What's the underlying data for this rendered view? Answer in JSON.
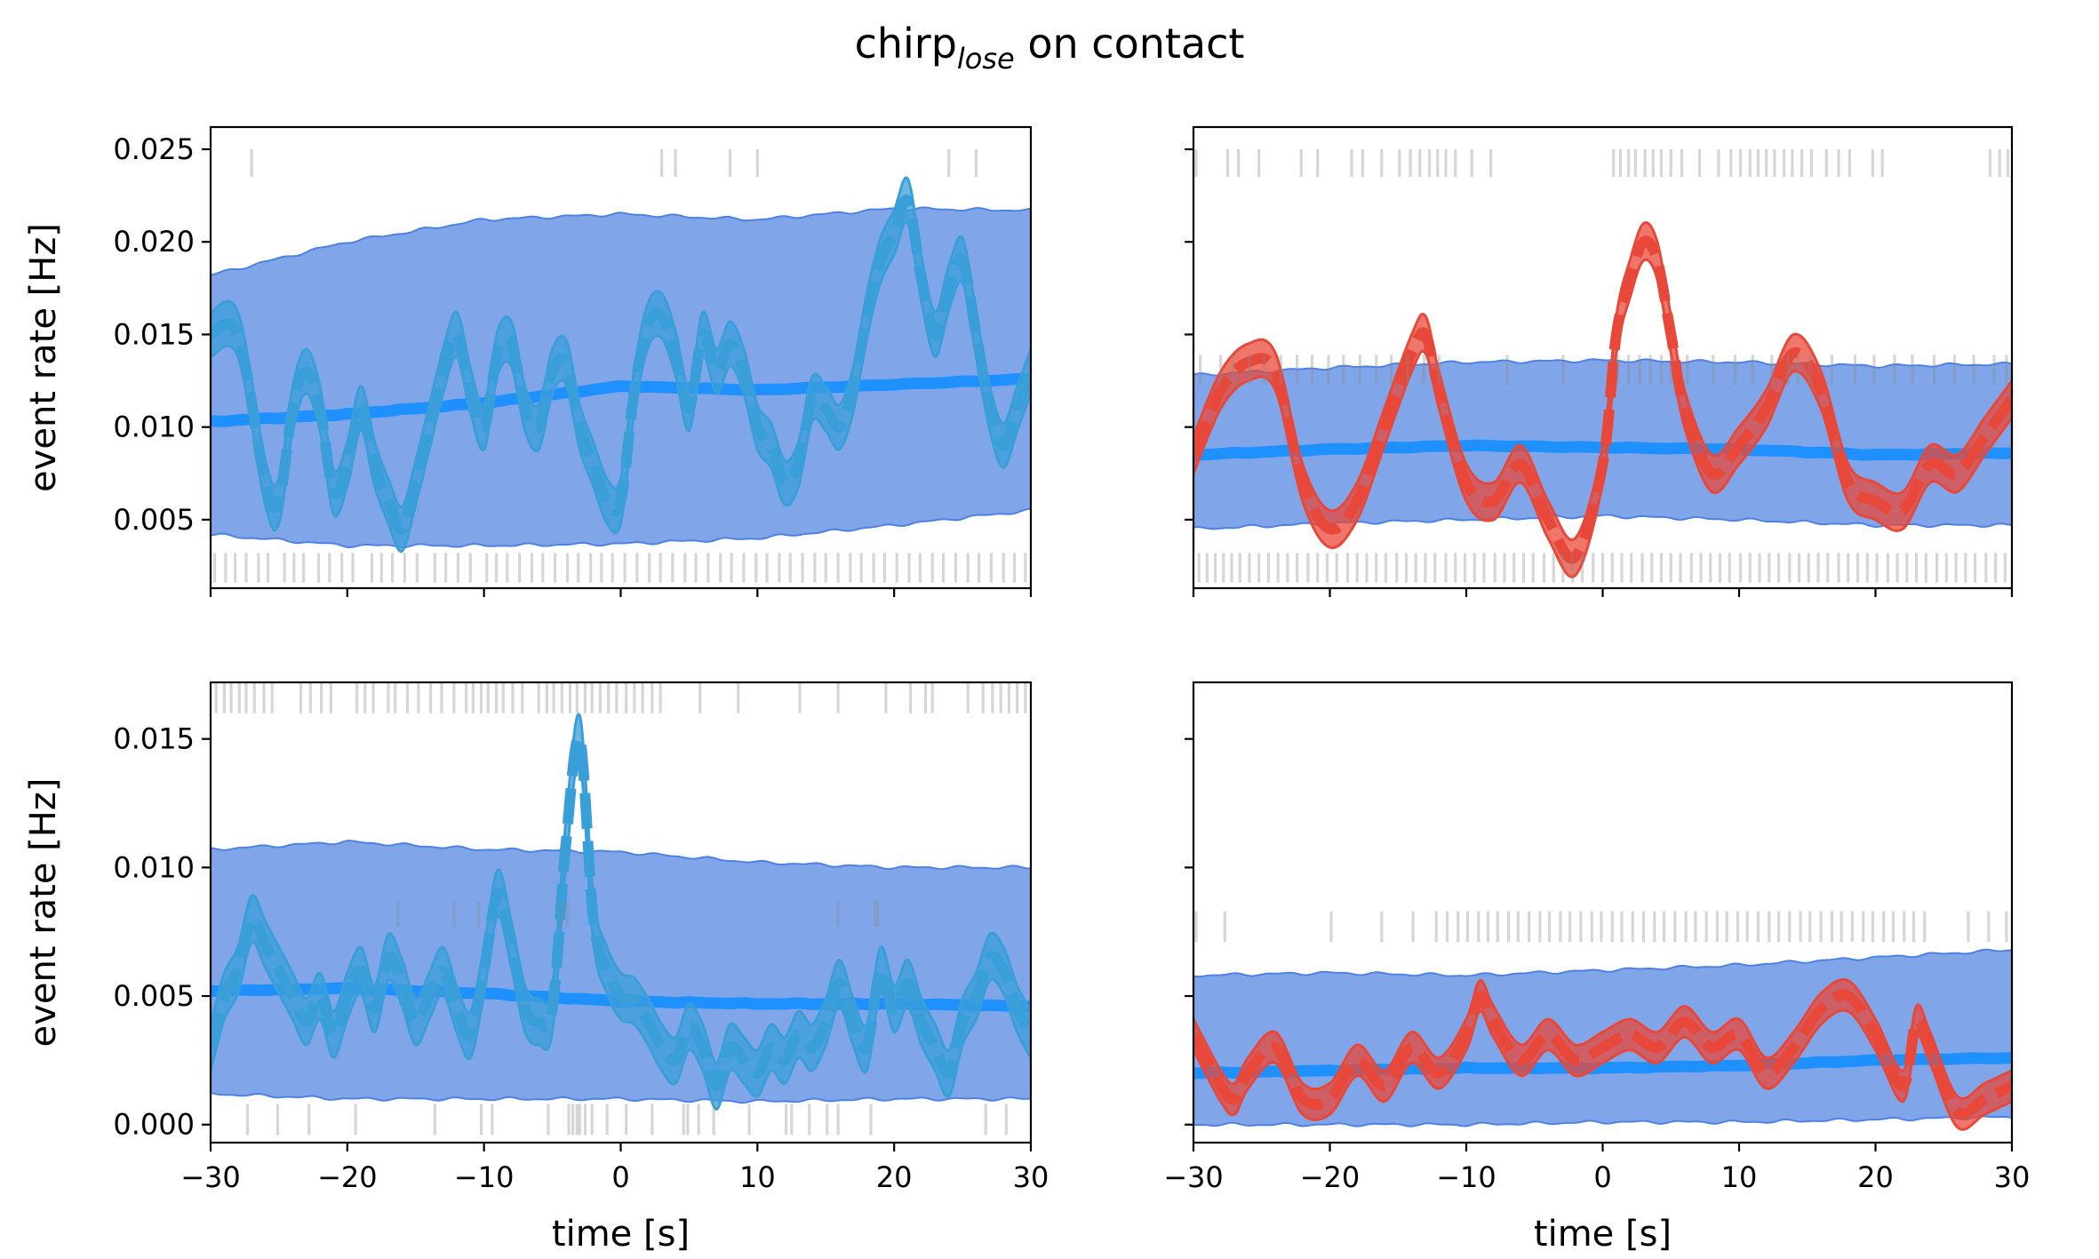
{
  "figure": {
    "title_main": "chirp",
    "title_sub": "lose",
    "title_rest": " on contact"
  },
  "colors": {
    "band": "#4f82e0",
    "mean": "#1e90ff",
    "curve_left": "#3a9fd8",
    "curve_right": "#e8483a",
    "rug": "#8a8a8a"
  },
  "chart_data": [
    {
      "panel": "top-left",
      "type": "area",
      "ylabel": "event rate [Hz]",
      "xlabel": "",
      "xlim": [
        -30,
        30
      ],
      "ylim": [
        0.0013,
        0.0262
      ],
      "yticks": [
        0.005,
        0.01,
        0.015,
        0.02,
        0.025
      ],
      "ytick_labels": [
        "0.005",
        "0.010",
        "0.015",
        "0.020",
        "0.025"
      ],
      "xticks": [
        -30,
        -20,
        -10,
        0,
        10,
        20,
        30
      ],
      "xtick_labels": [],
      "show_yticklabels": true,
      "curve_color": "#3a9fd8",
      "band_lower": {
        "x": [
          -30,
          -20,
          -10,
          0,
          10,
          20,
          30
        ],
        "y": [
          0.0042,
          0.0036,
          0.0036,
          0.0037,
          0.004,
          0.0047,
          0.0055
        ]
      },
      "band_upper": {
        "x": [
          -30,
          -20,
          -10,
          0,
          10,
          20,
          30
        ],
        "y": [
          0.0182,
          0.02,
          0.0212,
          0.0215,
          0.0212,
          0.0218,
          0.0217
        ]
      },
      "mean": {
        "x": [
          -30,
          -20,
          -10,
          0,
          10,
          20,
          30
        ],
        "y": [
          0.0103,
          0.0107,
          0.0113,
          0.0122,
          0.012,
          0.0123,
          0.0126
        ]
      },
      "curve": {
        "x": [
          -30,
          -28,
          -26,
          -25,
          -24,
          -23,
          -22,
          -21,
          -20,
          -19,
          -18,
          -17,
          -16,
          -15,
          -14,
          -13,
          -12,
          -11,
          -10,
          -9,
          -8,
          -7,
          -6,
          -5,
          -4,
          -3,
          -2,
          -1,
          0,
          1,
          2,
          3,
          4,
          5,
          6,
          7,
          8,
          9,
          10,
          11,
          12,
          13,
          14,
          15,
          16,
          17,
          18,
          19,
          20,
          21,
          22,
          23,
          24,
          25,
          26,
          27,
          28,
          29,
          30
        ],
        "y": [
          0.015,
          0.015,
          0.007,
          0.006,
          0.011,
          0.013,
          0.011,
          0.0065,
          0.008,
          0.011,
          0.008,
          0.006,
          0.0045,
          0.007,
          0.01,
          0.013,
          0.015,
          0.012,
          0.01,
          0.014,
          0.0145,
          0.011,
          0.01,
          0.013,
          0.0135,
          0.01,
          0.008,
          0.006,
          0.006,
          0.012,
          0.0155,
          0.016,
          0.014,
          0.011,
          0.015,
          0.013,
          0.0145,
          0.013,
          0.01,
          0.009,
          0.007,
          0.008,
          0.0115,
          0.011,
          0.01,
          0.012,
          0.016,
          0.019,
          0.0205,
          0.0222,
          0.018,
          0.015,
          0.0175,
          0.019,
          0.015,
          0.011,
          0.009,
          0.011,
          0.013
        ]
      },
      "curve_halfwidth": 0.0012,
      "rug_top": [
        -27,
        3,
        4,
        8,
        10,
        24,
        26
      ],
      "rug_bottom": [
        -29.7,
        -28.9,
        -28.2,
        -27.4,
        -26.5,
        -25.8,
        -24.6,
        -23.9,
        -23.2,
        -22.1,
        -21.3,
        -20.4,
        -19.6,
        -18.2,
        -17.5,
        -16.7,
        -15.8,
        -14.9,
        -13.6,
        -12.8,
        -11.9,
        -11.0,
        -9.8,
        -9.1,
        -8.3,
        -7.4,
        -6.5,
        -5.7,
        -4.8,
        -3.9,
        -3.1,
        -2.2,
        -1.4,
        -0.6,
        0.3,
        1.2,
        2.1,
        2.9,
        3.8,
        4.7,
        5.5,
        6.4,
        7.3,
        8.1,
        9.0,
        9.9,
        10.7,
        11.6,
        12.4,
        13.3,
        14.2,
        15.0,
        15.9,
        16.8,
        17.6,
        18.5,
        19.3,
        20.2,
        21.1,
        21.9,
        22.8,
        23.6,
        24.5,
        25.4,
        26.2,
        27.1,
        28.0,
        28.8,
        29.6
      ],
      "rug_top_band": [
        0.0235,
        0.025
      ],
      "rug_bottom_band": [
        0.0016,
        0.0032
      ]
    },
    {
      "panel": "top-right",
      "type": "area",
      "ylabel": "",
      "xlabel": "",
      "xlim": [
        -30,
        30
      ],
      "ylim": [
        0.0013,
        0.0262
      ],
      "yticks": [
        0.005,
        0.01,
        0.015,
        0.02,
        0.025
      ],
      "ytick_labels": [],
      "xticks": [
        -30,
        -20,
        -10,
        0,
        10,
        20,
        30
      ],
      "xtick_labels": [],
      "show_yticklabels": false,
      "curve_color": "#e8483a",
      "band_lower": {
        "x": [
          -30,
          -20,
          -10,
          0,
          10,
          20,
          30
        ],
        "y": [
          0.0045,
          0.0048,
          0.005,
          0.0052,
          0.005,
          0.0047,
          0.0047
        ]
      },
      "band_upper": {
        "x": [
          -30,
          -20,
          -10,
          0,
          10,
          20,
          30
        ],
        "y": [
          0.0128,
          0.0132,
          0.0135,
          0.0136,
          0.0135,
          0.0133,
          0.0134
        ]
      },
      "mean": {
        "x": [
          -30,
          -20,
          -10,
          0,
          10,
          20,
          30
        ],
        "y": [
          0.0085,
          0.0088,
          0.009,
          0.0089,
          0.0088,
          0.0085,
          0.0086
        ]
      },
      "curve": {
        "x": [
          -30,
          -28,
          -26,
          -24,
          -22,
          -20,
          -18,
          -16,
          -14,
          -13,
          -12,
          -10,
          -8,
          -6,
          -4,
          -2,
          0,
          1,
          2,
          3,
          4,
          5,
          6,
          8,
          10,
          12,
          14,
          16,
          18,
          20,
          22,
          24,
          26,
          28,
          30
        ],
        "y": [
          0.0085,
          0.012,
          0.0135,
          0.013,
          0.007,
          0.0045,
          0.006,
          0.01,
          0.014,
          0.015,
          0.012,
          0.007,
          0.006,
          0.008,
          0.005,
          0.003,
          0.008,
          0.015,
          0.018,
          0.02,
          0.019,
          0.015,
          0.011,
          0.0075,
          0.009,
          0.011,
          0.014,
          0.012,
          0.007,
          0.006,
          0.0055,
          0.008,
          0.0075,
          0.0095,
          0.0115
        ]
      },
      "curve_halfwidth": 0.001,
      "rug_top": [
        -29.8,
        -27.5,
        -26.7,
        -25.2,
        -22.1,
        -20.9,
        -18.4,
        -17.6,
        -16.2,
        -14.9,
        -14.1,
        -13.4,
        -12.7,
        -12.1,
        -11.5,
        -10.8,
        -9.6,
        -8.2,
        0.8,
        1.3,
        1.9,
        2.4,
        3.1,
        3.7,
        4.3,
        5.0,
        5.8,
        7.1,
        8.5,
        9.4,
        10.1,
        10.8,
        11.4,
        12.0,
        12.6,
        13.3,
        13.9,
        14.6,
        15.3,
        16.4,
        17.3,
        18.1,
        19.8,
        20.5,
        28.4,
        29.1,
        29.7
      ],
      "rug_mid": [
        -29.5,
        -28.0,
        -27.1,
        -25.9,
        -24.8,
        -23.6,
        -22.4,
        -21.3,
        -20.1,
        -19.0,
        -17.8,
        -16.6,
        -15.5,
        -14.3,
        -13.1,
        -12.0,
        -7.0,
        -2.9,
        1.1,
        1.9,
        2.7,
        3.5,
        4.3,
        5.0,
        6.2,
        8.1,
        9.7,
        11.0,
        12.4,
        13.6,
        14.3,
        15.2,
        16.8,
        18.5,
        19.9,
        21.4,
        22.7,
        24.3,
        25.8,
        27.2,
        28.7,
        29.6
      ],
      "rug_bottom": [
        -29.6,
        -29.0,
        -28.4,
        -27.8,
        -27.2,
        -26.6,
        -25.9,
        -25.2,
        -24.5,
        -23.8,
        -23.1,
        -22.4,
        -21.6,
        -20.9,
        -20.2,
        -19.5,
        -18.7,
        -18.0,
        -17.3,
        -16.6,
        -15.9,
        -15.1,
        -14.4,
        -13.7,
        -13.0,
        -12.3,
        -11.5,
        -10.8,
        -10.1,
        -9.4,
        -8.7,
        -7.9,
        -7.2,
        -6.5,
        -5.8,
        -5.1,
        -4.3,
        -3.6,
        -2.9,
        -2.2,
        -1.5,
        -0.7,
        0.0,
        0.7,
        1.4,
        2.1,
        2.9,
        3.6,
        4.3,
        5.0,
        5.7,
        6.5,
        7.2,
        7.9,
        8.6,
        9.3,
        10.1,
        10.8,
        11.5,
        12.2,
        12.9,
        13.7,
        14.4,
        15.1,
        15.8,
        16.5,
        17.3,
        18.0,
        18.7,
        19.4,
        20.1,
        20.9,
        21.6,
        22.3,
        23.0,
        23.7,
        24.5,
        25.2,
        25.9,
        26.6,
        27.3,
        28.1,
        28.8,
        29.5
      ],
      "rug_top_band": [
        0.0235,
        0.025
      ],
      "rug_mid_band": [
        0.0123,
        0.0139
      ],
      "rug_bottom_band": [
        0.0016,
        0.0032
      ]
    },
    {
      "panel": "bottom-left",
      "type": "area",
      "ylabel": "event rate [Hz]",
      "xlabel": "time [s]",
      "xlim": [
        -30,
        30
      ],
      "ylim": [
        -0.0007,
        0.0172
      ],
      "yticks": [
        0.0,
        0.005,
        0.01,
        0.015
      ],
      "ytick_labels": [
        "0.000",
        "0.005",
        "0.010",
        "0.015"
      ],
      "xticks": [
        -30,
        -20,
        -10,
        0,
        10,
        20,
        30
      ],
      "xtick_labels": [
        "−30",
        "−20",
        "−10",
        "0",
        "10",
        "20",
        "30"
      ],
      "show_yticklabels": true,
      "curve_color": "#3a9fd8",
      "band_lower": {
        "x": [
          -30,
          -20,
          -10,
          0,
          10,
          20,
          30
        ],
        "y": [
          0.0012,
          0.001,
          0.001,
          0.001,
          0.0009,
          0.001,
          0.001
        ]
      },
      "band_upper": {
        "x": [
          -30,
          -20,
          -10,
          0,
          10,
          20,
          30
        ],
        "y": [
          0.0107,
          0.011,
          0.0107,
          0.0106,
          0.0102,
          0.01,
          0.01
        ]
      },
      "mean": {
        "x": [
          -30,
          -20,
          -10,
          0,
          10,
          20,
          30
        ],
        "y": [
          0.0052,
          0.0053,
          0.0051,
          0.0048,
          0.0047,
          0.0047,
          0.0046
        ]
      },
      "curve": {
        "x": [
          -30,
          -29,
          -28,
          -27,
          -26,
          -25,
          -24,
          -23,
          -22,
          -21,
          -20,
          -19,
          -18,
          -17,
          -16,
          -15,
          -14,
          -13,
          -12,
          -11,
          -10,
          -9,
          -8,
          -7,
          -6,
          -5,
          -4,
          -3,
          -2,
          -1,
          0,
          1,
          2,
          3,
          4,
          5,
          6,
          7,
          8,
          9,
          10,
          11,
          12,
          13,
          14,
          15,
          16,
          17,
          18,
          19,
          20,
          21,
          22,
          23,
          24,
          25,
          26,
          27,
          28,
          29,
          30
        ],
        "y": [
          0.003,
          0.005,
          0.006,
          0.008,
          0.007,
          0.006,
          0.005,
          0.004,
          0.005,
          0.0035,
          0.005,
          0.006,
          0.0045,
          0.0065,
          0.0055,
          0.004,
          0.005,
          0.006,
          0.0045,
          0.0035,
          0.006,
          0.009,
          0.007,
          0.0045,
          0.004,
          0.0045,
          0.011,
          0.015,
          0.008,
          0.006,
          0.005,
          0.0048,
          0.004,
          0.003,
          0.0025,
          0.0038,
          0.003,
          0.0015,
          0.003,
          0.0025,
          0.002,
          0.003,
          0.0025,
          0.0035,
          0.003,
          0.004,
          0.0055,
          0.004,
          0.003,
          0.006,
          0.0045,
          0.0055,
          0.004,
          0.003,
          0.002,
          0.004,
          0.005,
          0.0065,
          0.006,
          0.0045,
          0.0035
        ]
      },
      "curve_halfwidth": 0.0009,
      "rug_top": [
        -29.6,
        -29.0,
        -28.5,
        -27.9,
        -27.4,
        -26.8,
        -26.1,
        -25.5,
        -23.4,
        -22.7,
        -21.9,
        -21.2,
        -19.3,
        -18.7,
        -18.1,
        -17.0,
        -16.5,
        -15.6,
        -14.8,
        -13.9,
        -13.1,
        -12.2,
        -11.3,
        -10.8,
        -10.2,
        -9.7,
        -9.1,
        -8.6,
        -7.9,
        -7.2,
        -6.0,
        -5.4,
        -4.9,
        -4.3,
        -3.7,
        -3.2,
        -2.6,
        -2.1,
        -1.5,
        -0.9,
        -0.3,
        0.4,
        1.0,
        1.6,
        2.3,
        2.9,
        5.8,
        8.6,
        13.1,
        15.9,
        19.4,
        21.2,
        22.3,
        22.8,
        25.4,
        26.5,
        27.2,
        27.8,
        28.4,
        29.0,
        29.6
      ],
      "rug_mid": [
        -16.3,
        -12.2,
        -10.4,
        -4.4,
        -3.9,
        15.9,
        18.6,
        18.8
      ],
      "rug_bottom": [
        -27.3,
        -25.1,
        -22.8,
        -19.4,
        -13.6,
        -10.2,
        -9.4,
        -5.3,
        -3.8,
        -3.5,
        -3.2,
        -3.0,
        -2.6,
        -2.1,
        -1.0,
        0.4,
        2.3,
        4.6,
        4.9,
        5.7,
        6.8,
        9.4,
        12.1,
        12.5,
        13.8,
        15.1,
        15.9,
        18.3,
        26.7,
        28.2
      ],
      "rug_top_band": [
        0.016,
        0.0172
      ],
      "rug_mid_band": [
        0.0077,
        0.0087
      ],
      "rug_bottom_band": [
        -0.0004,
        0.0008
      ]
    },
    {
      "panel": "bottom-right",
      "type": "area",
      "ylabel": "",
      "xlabel": "time [s]",
      "xlim": [
        -30,
        30
      ],
      "ylim": [
        -0.0007,
        0.0172
      ],
      "yticks": [
        0.0,
        0.005,
        0.01,
        0.015
      ],
      "ytick_labels": [],
      "xticks": [
        -30,
        -20,
        -10,
        0,
        10,
        20,
        30
      ],
      "xtick_labels": [
        "−30",
        "−20",
        "−10",
        "0",
        "10",
        "20",
        "30"
      ],
      "show_yticklabels": false,
      "curve_color": "#e8483a",
      "band_lower": {
        "x": [
          -30,
          -20,
          -10,
          0,
          10,
          20,
          30
        ],
        "y": [
          0.0,
          0.0,
          0.0,
          0.0001,
          0.0001,
          0.0002,
          0.0003
        ]
      },
      "band_upper": {
        "x": [
          -30,
          -20,
          -10,
          0,
          10,
          20,
          30
        ],
        "y": [
          0.0058,
          0.0059,
          0.0058,
          0.006,
          0.0062,
          0.0065,
          0.0068
        ]
      },
      "mean": {
        "x": [
          -30,
          -20,
          -10,
          0,
          10,
          20,
          30
        ],
        "y": [
          0.002,
          0.0021,
          0.0022,
          0.0022,
          0.0023,
          0.0025,
          0.0026
        ]
      },
      "curve": {
        "x": [
          -30,
          -28,
          -27,
          -26,
          -24,
          -22,
          -20,
          -18,
          -16,
          -14,
          -12,
          -10,
          -9,
          -8,
          -6,
          -4,
          -2,
          0,
          2,
          4,
          6,
          8,
          10,
          12,
          14,
          16,
          18,
          20,
          22,
          23,
          24,
          26,
          28,
          30
        ],
        "y": [
          0.0035,
          0.0015,
          0.001,
          0.002,
          0.003,
          0.001,
          0.001,
          0.0025,
          0.0015,
          0.003,
          0.002,
          0.0035,
          0.005,
          0.004,
          0.0025,
          0.0035,
          0.0025,
          0.003,
          0.0035,
          0.003,
          0.004,
          0.003,
          0.0035,
          0.002,
          0.003,
          0.0045,
          0.005,
          0.0035,
          0.0015,
          0.004,
          0.003,
          0.0005,
          0.001,
          0.0015
        ]
      },
      "curve_halfwidth": 0.0006,
      "rug_mid": [
        -29.8,
        -27.7,
        -19.9,
        -16.2,
        -13.9,
        -12.2,
        -11.4,
        -10.6,
        -9.9,
        -9.1,
        -8.4,
        -7.7,
        -6.9,
        -6.2,
        -5.4,
        -4.6,
        -3.9,
        -3.1,
        -2.4,
        -1.6,
        -0.8,
        -0.1,
        0.7,
        1.4,
        2.2,
        3.0,
        3.8,
        4.5,
        5.3,
        6.1,
        6.8,
        7.6,
        8.4,
        9.1,
        9.9,
        10.6,
        11.4,
        12.2,
        12.9,
        13.7,
        14.5,
        15.2,
        16.0,
        16.8,
        17.5,
        18.3,
        19.1,
        19.8,
        20.6,
        21.3,
        22.1,
        22.8,
        23.6,
        26.8,
        28.3,
        29.6
      ],
      "rug_mid_band": [
        0.0071,
        0.0083
      ]
    }
  ]
}
